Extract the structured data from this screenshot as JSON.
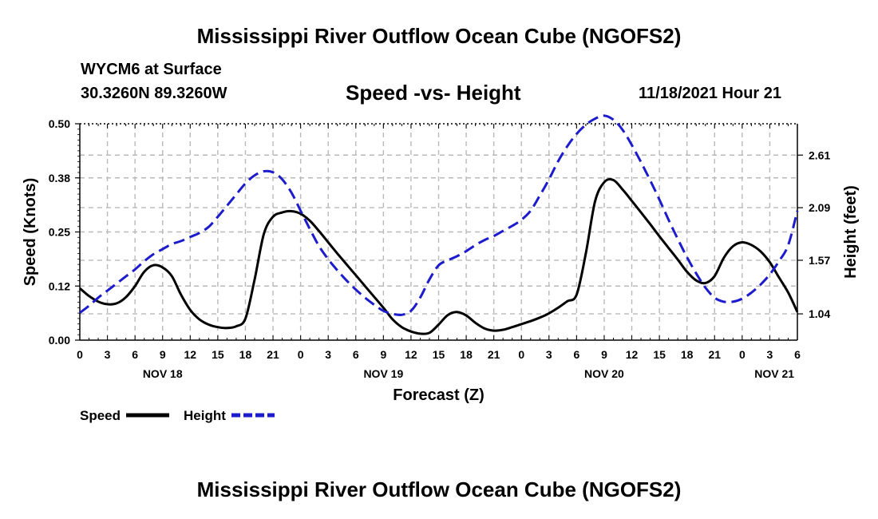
{
  "header": {
    "title": "Mississippi River Outflow Ocean Cube (NGOFS2)",
    "station": "WYCM6 at Surface",
    "coords": "30.3260N  89.3260W",
    "subtitle": "Speed -vs- Height",
    "datetime": "11/18/2021 Hour 21"
  },
  "footer": {
    "title": "Mississippi River Outflow Ocean Cube (NGOFS2)"
  },
  "chart_data": {
    "type": "line",
    "title": "Speed -vs- Height",
    "xlabel": "Forecast (Z)",
    "ylabel": "Speed (Knots)",
    "y2label": "Height (feet)",
    "xlim": [
      0,
      78
    ],
    "ylim": [
      0,
      0.5
    ],
    "y2lim": [
      0.78,
      2.92
    ],
    "x_ticks": [
      0,
      3,
      6,
      9,
      12,
      15,
      18,
      21,
      24,
      27,
      30,
      33,
      36,
      39,
      42,
      45,
      48,
      51,
      54,
      57,
      60,
      63,
      66,
      69,
      72,
      75,
      78
    ],
    "x_tick_labels": [
      "0",
      "3",
      "6",
      "9",
      "12",
      "15",
      "18",
      "21",
      "0",
      "3",
      "6",
      "9",
      "12",
      "15",
      "18",
      "21",
      "0",
      "3",
      "6",
      "9",
      "12",
      "15",
      "18",
      "21",
      "0",
      "3",
      "6"
    ],
    "day_labels": [
      {
        "x": 9,
        "label": "NOV 18"
      },
      {
        "x": 33,
        "label": "NOV 19"
      },
      {
        "x": 57,
        "label": "NOV 20"
      },
      {
        "x": 75.5,
        "label": "NOV 21"
      }
    ],
    "y_ticks": [
      0,
      0.125,
      0.25,
      0.375,
      0.5
    ],
    "y_tick_labels": [
      "0.00",
      "0.12",
      "0.25",
      "0.38",
      "0.50"
    ],
    "y2_ticks": [
      1.04,
      1.57,
      2.09,
      2.61
    ],
    "y2_tick_labels": [
      "1.04",
      "1.57",
      "2.09",
      "2.61"
    ],
    "grid": true,
    "legend_position": "bottom-left",
    "series": [
      {
        "name": "Speed",
        "axis": "left",
        "color": "#000000",
        "dash": "solid",
        "x": [
          0,
          1,
          2,
          3,
          4,
          5,
          6,
          7,
          8,
          9,
          10,
          11,
          12,
          13,
          14,
          15,
          16,
          17,
          18,
          19,
          20,
          21,
          22,
          23,
          24,
          25,
          26,
          27,
          28,
          29,
          30,
          31,
          32,
          33,
          34,
          35,
          36,
          37,
          38,
          39,
          40,
          41,
          42,
          43,
          44,
          45,
          46,
          47,
          48,
          49,
          50,
          51,
          52,
          53,
          54,
          55,
          56,
          57,
          58,
          59,
          60,
          61,
          62,
          63,
          64,
          65,
          66,
          67,
          68,
          69,
          70,
          71,
          72,
          73,
          74,
          75,
          76,
          77,
          78
        ],
        "values": [
          0.12,
          0.102,
          0.089,
          0.083,
          0.085,
          0.099,
          0.125,
          0.158,
          0.173,
          0.168,
          0.148,
          0.105,
          0.07,
          0.048,
          0.036,
          0.03,
          0.028,
          0.032,
          0.05,
          0.14,
          0.245,
          0.285,
          0.295,
          0.298,
          0.292,
          0.276,
          0.252,
          0.226,
          0.2,
          0.175,
          0.15,
          0.125,
          0.1,
          0.075,
          0.048,
          0.03,
          0.02,
          0.015,
          0.017,
          0.036,
          0.058,
          0.065,
          0.057,
          0.04,
          0.027,
          0.022,
          0.024,
          0.03,
          0.037,
          0.044,
          0.052,
          0.062,
          0.075,
          0.09,
          0.105,
          0.2,
          0.32,
          0.365,
          0.37,
          0.348,
          0.322,
          0.295,
          0.268,
          0.24,
          0.213,
          0.186,
          0.158,
          0.138,
          0.132,
          0.148,
          0.19,
          0.217,
          0.226,
          0.22,
          0.205,
          0.18,
          0.145,
          0.11,
          0.065
        ]
      },
      {
        "name": "Height",
        "axis": "right",
        "color": "#1c1ccc",
        "dash": "dashed",
        "x": [
          0,
          1,
          2,
          3,
          4,
          5,
          6,
          7,
          8,
          9,
          10,
          11,
          12,
          13,
          14,
          15,
          16,
          17,
          18,
          19,
          20,
          21,
          22,
          23,
          24,
          25,
          26,
          27,
          28,
          29,
          30,
          31,
          32,
          33,
          34,
          35,
          36,
          37,
          38,
          39,
          40,
          41,
          42,
          43,
          44,
          45,
          46,
          47,
          48,
          49,
          50,
          51,
          52,
          53,
          54,
          55,
          56,
          57,
          58,
          59,
          60,
          61,
          62,
          63,
          64,
          65,
          66,
          67,
          68,
          69,
          70,
          71,
          72,
          73,
          74,
          75,
          76,
          77,
          78
        ],
        "values": [
          1.05,
          1.12,
          1.2,
          1.27,
          1.34,
          1.41,
          1.48,
          1.56,
          1.63,
          1.68,
          1.73,
          1.76,
          1.8,
          1.84,
          1.9,
          2.0,
          2.11,
          2.22,
          2.33,
          2.41,
          2.45,
          2.44,
          2.37,
          2.24,
          2.06,
          1.88,
          1.71,
          1.58,
          1.47,
          1.37,
          1.28,
          1.2,
          1.13,
          1.07,
          1.04,
          1.03,
          1.07,
          1.2,
          1.38,
          1.52,
          1.57,
          1.61,
          1.66,
          1.72,
          1.77,
          1.81,
          1.86,
          1.91,
          1.97,
          2.06,
          2.21,
          2.37,
          2.55,
          2.7,
          2.82,
          2.91,
          2.97,
          3.0,
          2.96,
          2.86,
          2.71,
          2.54,
          2.36,
          2.17,
          1.97,
          1.78,
          1.6,
          1.44,
          1.3,
          1.2,
          1.16,
          1.16,
          1.19,
          1.25,
          1.33,
          1.43,
          1.56,
          1.72,
          2.06
        ]
      }
    ]
  }
}
